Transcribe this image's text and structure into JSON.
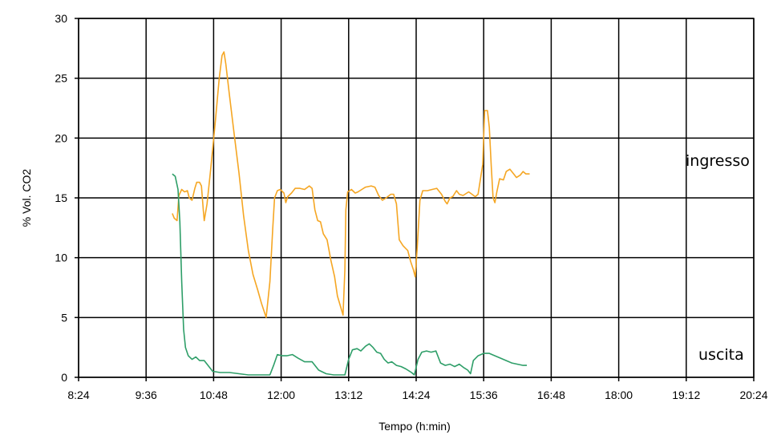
{
  "chart_data": {
    "type": "line",
    "xlabel": "Tempo (h:min)",
    "ylabel": "% Vol. CO2",
    "xlim": [
      "8:24",
      "20:24"
    ],
    "ylim": [
      0,
      30
    ],
    "x_ticks": [
      "8:24",
      "9:36",
      "10:48",
      "12:00",
      "13:12",
      "14:24",
      "15:36",
      "16:48",
      "18:00",
      "19:12",
      "20:24"
    ],
    "y_ticks": [
      0,
      5,
      10,
      15,
      20,
      25,
      30
    ],
    "grid": true,
    "series": [
      {
        "name": "ingresso",
        "color": "#f5a623",
        "points": [
          [
            "10:04",
            13.7
          ],
          [
            "10:06",
            13.3
          ],
          [
            "10:09",
            13.1
          ],
          [
            "10:11",
            15.2
          ],
          [
            "10:14",
            15.7
          ],
          [
            "10:17",
            15.5
          ],
          [
            "10:20",
            15.6
          ],
          [
            "10:22",
            15.0
          ],
          [
            "10:25",
            14.8
          ],
          [
            "10:28",
            15.8
          ],
          [
            "10:30",
            16.3
          ],
          [
            "10:33",
            16.3
          ],
          [
            "10:35",
            16.0
          ],
          [
            "10:37",
            14.0
          ],
          [
            "10:38",
            13.1
          ],
          [
            "10:41",
            14.5
          ],
          [
            "10:45",
            17.5
          ],
          [
            "10:50",
            21.5
          ],
          [
            "10:54",
            25.0
          ],
          [
            "10:57",
            26.9
          ],
          [
            "10:59",
            27.2
          ],
          [
            "11:01",
            26.2
          ],
          [
            "11:05",
            23.5
          ],
          [
            "11:10",
            20.3
          ],
          [
            "11:15",
            17.1
          ],
          [
            "11:20",
            13.5
          ],
          [
            "11:25",
            10.6
          ],
          [
            "11:30",
            8.6
          ],
          [
            "11:35",
            7.3
          ],
          [
            "11:39",
            6.2
          ],
          [
            "11:44",
            5.0
          ],
          [
            "11:48",
            8.0
          ],
          [
            "11:51",
            12.4
          ],
          [
            "11:53",
            15.0
          ],
          [
            "11:56",
            15.6
          ],
          [
            "11:59",
            15.7
          ],
          [
            "12:03",
            15.4
          ],
          [
            "12:05",
            14.6
          ],
          [
            "12:07",
            15.1
          ],
          [
            "12:11",
            15.4
          ],
          [
            "12:15",
            15.8
          ],
          [
            "12:20",
            15.8
          ],
          [
            "12:25",
            15.7
          ],
          [
            "12:30",
            16.0
          ],
          [
            "12:33",
            15.8
          ],
          [
            "12:36",
            14.0
          ],
          [
            "12:39",
            13.1
          ],
          [
            "12:42",
            13.0
          ],
          [
            "12:45",
            12.0
          ],
          [
            "12:49",
            11.5
          ],
          [
            "12:53",
            9.8
          ],
          [
            "12:57",
            8.4
          ],
          [
            "13:00",
            6.8
          ],
          [
            "13:03",
            6.0
          ],
          [
            "13:06",
            5.2
          ],
          [
            "13:08",
            9.0
          ],
          [
            "13:09",
            14.0
          ],
          [
            "13:11",
            15.5
          ],
          [
            "13:15",
            15.7
          ],
          [
            "13:19",
            15.4
          ],
          [
            "13:22",
            15.5
          ],
          [
            "13:26",
            15.7
          ],
          [
            "13:30",
            15.9
          ],
          [
            "13:36",
            16.0
          ],
          [
            "13:40",
            15.9
          ],
          [
            "13:44",
            15.2
          ],
          [
            "13:48",
            14.8
          ],
          [
            "13:52",
            15.0
          ],
          [
            "13:57",
            15.3
          ],
          [
            "14:00",
            15.3
          ],
          [
            "14:03",
            14.5
          ],
          [
            "14:06",
            11.5
          ],
          [
            "14:10",
            11.0
          ],
          [
            "14:15",
            10.6
          ],
          [
            "14:18",
            9.7
          ],
          [
            "14:21",
            9.0
          ],
          [
            "14:23",
            8.4
          ],
          [
            "14:25",
            10.7
          ],
          [
            "14:28",
            14.8
          ],
          [
            "14:31",
            15.6
          ],
          [
            "14:36",
            15.6
          ],
          [
            "14:41",
            15.7
          ],
          [
            "14:46",
            15.8
          ],
          [
            "14:49",
            15.5
          ],
          [
            "14:51",
            15.3
          ],
          [
            "14:55",
            14.7
          ],
          [
            "14:57",
            14.5
          ],
          [
            "15:00",
            15.0
          ],
          [
            "15:03",
            15.1
          ],
          [
            "15:07",
            15.6
          ],
          [
            "15:10",
            15.3
          ],
          [
            "15:14",
            15.2
          ],
          [
            "15:20",
            15.5
          ],
          [
            "15:27",
            15.1
          ],
          [
            "15:30",
            15.3
          ],
          [
            "15:35",
            17.8
          ],
          [
            "15:37",
            22.3
          ],
          [
            "15:40",
            22.3
          ],
          [
            "15:42",
            20.9
          ],
          [
            "15:44",
            17.7
          ],
          [
            "15:46",
            15.0
          ],
          [
            "15:48",
            14.6
          ],
          [
            "15:50",
            15.5
          ],
          [
            "15:53",
            16.6
          ],
          [
            "15:57",
            16.5
          ],
          [
            "16:00",
            17.2
          ],
          [
            "16:04",
            17.4
          ],
          [
            "16:08",
            17.0
          ],
          [
            "16:11",
            16.7
          ],
          [
            "16:15",
            16.9
          ],
          [
            "16:18",
            17.2
          ],
          [
            "16:21",
            17.0
          ],
          [
            "16:25",
            17.0
          ]
        ]
      },
      {
        "name": "uscita",
        "color": "#2e9e68",
        "points": [
          [
            "10:04",
            17.0
          ],
          [
            "10:07",
            16.8
          ],
          [
            "10:10",
            15.7
          ],
          [
            "10:12",
            13.0
          ],
          [
            "10:14",
            8.0
          ],
          [
            "10:16",
            4.0
          ],
          [
            "10:18",
            2.5
          ],
          [
            "10:21",
            1.8
          ],
          [
            "10:25",
            1.5
          ],
          [
            "10:29",
            1.7
          ],
          [
            "10:33",
            1.4
          ],
          [
            "10:38",
            1.4
          ],
          [
            "10:43",
            0.9
          ],
          [
            "10:47",
            0.5
          ],
          [
            "10:55",
            0.4
          ],
          [
            "11:05",
            0.4
          ],
          [
            "11:15",
            0.3
          ],
          [
            "11:25",
            0.2
          ],
          [
            "11:35",
            0.2
          ],
          [
            "11:44",
            0.2
          ],
          [
            "11:48",
            0.2
          ],
          [
            "11:52",
            1.0
          ],
          [
            "11:56",
            1.9
          ],
          [
            "12:01",
            1.8
          ],
          [
            "12:06",
            1.8
          ],
          [
            "12:12",
            1.9
          ],
          [
            "12:18",
            1.6
          ],
          [
            "12:25",
            1.3
          ],
          [
            "12:33",
            1.3
          ],
          [
            "12:40",
            0.6
          ],
          [
            "12:48",
            0.3
          ],
          [
            "12:56",
            0.2
          ],
          [
            "13:03",
            0.2
          ],
          [
            "13:08",
            0.2
          ],
          [
            "13:12",
            1.5
          ],
          [
            "13:16",
            2.3
          ],
          [
            "13:21",
            2.4
          ],
          [
            "13:25",
            2.2
          ],
          [
            "13:30",
            2.6
          ],
          [
            "13:34",
            2.8
          ],
          [
            "13:38",
            2.5
          ],
          [
            "13:42",
            2.1
          ],
          [
            "13:46",
            2.0
          ],
          [
            "13:50",
            1.5
          ],
          [
            "13:54",
            1.2
          ],
          [
            "13:58",
            1.3
          ],
          [
            "14:03",
            1.0
          ],
          [
            "14:08",
            0.9
          ],
          [
            "14:13",
            0.7
          ],
          [
            "14:19",
            0.4
          ],
          [
            "14:22",
            0.2
          ],
          [
            "14:26",
            1.5
          ],
          [
            "14:30",
            2.1
          ],
          [
            "14:35",
            2.2
          ],
          [
            "14:40",
            2.1
          ],
          [
            "14:45",
            2.2
          ],
          [
            "14:50",
            1.2
          ],
          [
            "14:55",
            1.0
          ],
          [
            "15:00",
            1.1
          ],
          [
            "15:05",
            0.9
          ],
          [
            "15:10",
            1.1
          ],
          [
            "15:15",
            0.8
          ],
          [
            "15:19",
            0.6
          ],
          [
            "15:22",
            0.3
          ],
          [
            "15:25",
            1.4
          ],
          [
            "15:30",
            1.8
          ],
          [
            "15:36",
            2.0
          ],
          [
            "15:42",
            2.0
          ],
          [
            "15:48",
            1.8
          ],
          [
            "15:54",
            1.6
          ],
          [
            "16:00",
            1.4
          ],
          [
            "16:06",
            1.2
          ],
          [
            "16:12",
            1.1
          ],
          [
            "16:18",
            1.0
          ],
          [
            "16:22",
            1.0
          ]
        ]
      }
    ]
  }
}
